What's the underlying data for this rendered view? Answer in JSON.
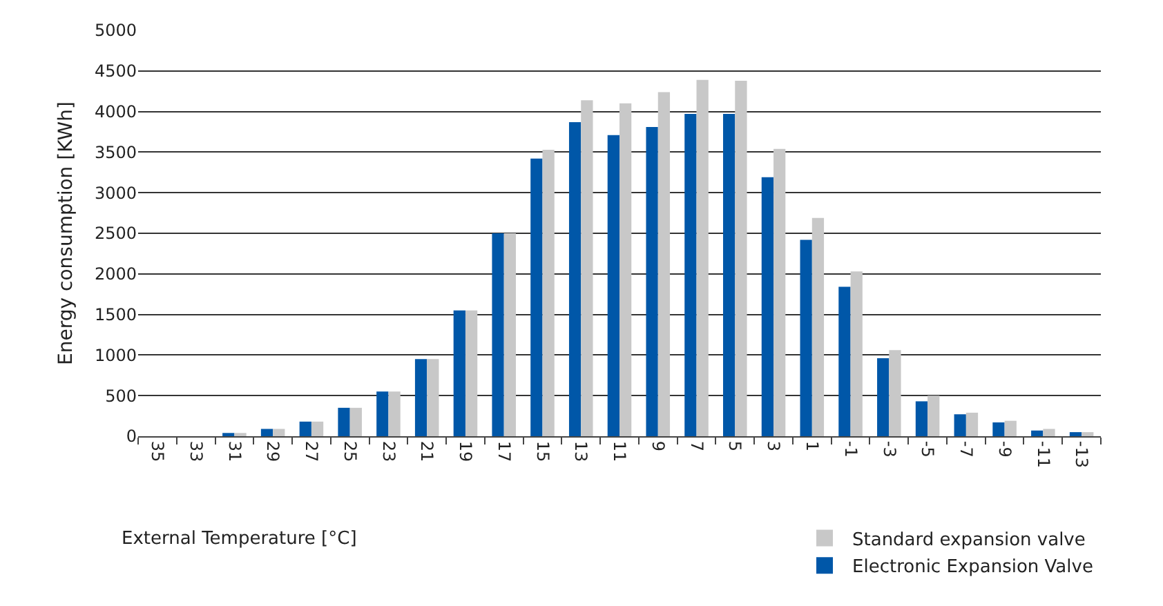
{
  "chart_data": {
    "type": "bar",
    "xlabel": "External Temperature [°C]",
    "ylabel": "Energy consumption [KWh]",
    "categories": [
      "35",
      "33",
      "31",
      "29",
      "27",
      "25",
      "23",
      "21",
      "19",
      "17",
      "15",
      "13",
      "11",
      "9",
      "7",
      "5",
      "3",
      "1",
      "-1",
      "-3",
      "-5",
      "-7",
      "-9",
      "-11",
      "-13"
    ],
    "series": [
      {
        "name": "Electronic Expansion Valve",
        "color": "#0057a8",
        "values": [
          0,
          0,
          40,
          90,
          180,
          350,
          550,
          950,
          1550,
          2500,
          3420,
          3870,
          3710,
          3810,
          3970,
          3970,
          3190,
          2420,
          1840,
          960,
          430,
          270,
          170,
          70,
          50
        ]
      },
      {
        "name": "Standard expansion valve",
        "color": "#c8c8c8",
        "values": [
          0,
          0,
          40,
          90,
          180,
          350,
          550,
          950,
          1550,
          2500,
          3530,
          4140,
          4100,
          4240,
          4390,
          4380,
          3540,
          2690,
          2030,
          1060,
          500,
          290,
          190,
          90,
          50
        ]
      }
    ],
    "ylim": [
      0,
      5000
    ],
    "yticks": [
      0,
      500,
      1000,
      1500,
      2000,
      2500,
      3000,
      3500,
      4000,
      4500,
      5000
    ],
    "grid": "y",
    "legend": "bottom right"
  }
}
